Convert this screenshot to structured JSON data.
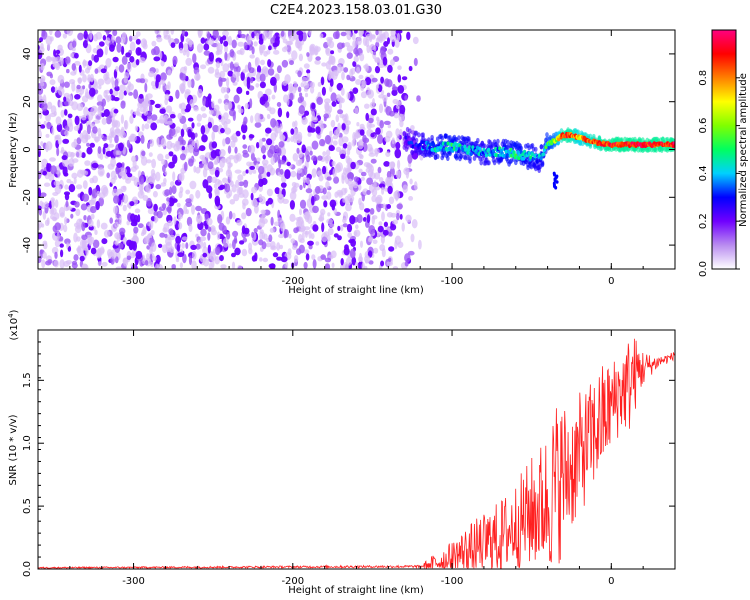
{
  "title": "C2E4.2023.158.03.01.G30",
  "chart_data": [
    {
      "type": "scatter",
      "name": "spectrogram",
      "xlabel": "Height of straight line (km)",
      "ylabel": "Frequency (Hz)",
      "xlim": [
        -360,
        40
      ],
      "ylim": [
        -50,
        50
      ],
      "xticks": [
        -300,
        -200,
        -100,
        0
      ],
      "yticks": [
        -40,
        -20,
        0,
        20,
        40
      ],
      "noise_region": {
        "x": [
          -360,
          -125
        ],
        "y": [
          -50,
          50
        ],
        "amplitude_range": [
          0.0,
          0.15
        ]
      },
      "signal_trace": {
        "x": [
          -130,
          -120,
          -110,
          -100,
          -90,
          -80,
          -70,
          -60,
          -50,
          -45,
          -40,
          -35,
          -30,
          -25,
          -20,
          -10,
          0,
          10,
          20,
          30,
          40
        ],
        "y": [
          4,
          2,
          1,
          1,
          0,
          -1,
          -1,
          -2,
          -3,
          -4,
          2,
          4,
          6,
          6,
          5,
          3,
          2,
          2,
          2,
          2,
          2
        ],
        "amplitude": [
          0.2,
          0.3,
          0.4,
          0.45,
          0.4,
          0.35,
          0.4,
          0.45,
          0.4,
          0.35,
          0.5,
          0.6,
          0.9,
          0.85,
          0.75,
          0.85,
          0.9,
          0.9,
          0.9,
          0.9,
          0.9
        ]
      },
      "colorbar": {
        "label": "Normalized spectral amplitude",
        "range": [
          0.0,
          1.0
        ],
        "ticks": [
          0.0,
          0.2,
          0.4,
          0.6,
          0.8
        ],
        "tick_labels": [
          "0.0",
          "0.2",
          "0.4",
          "0.6",
          "0.8"
        ],
        "colors": [
          "#ffffff",
          "#b98cf0",
          "#7000ff",
          "#0000ff",
          "#00d0ff",
          "#00ff60",
          "#80ff00",
          "#ffff00",
          "#ff8000",
          "#ff0000",
          "#ff0080"
        ]
      }
    },
    {
      "type": "line",
      "name": "snr",
      "xlabel": "Height of straight line (km)",
      "ylabel": "SNR (10 * v/v)",
      "y_multiplier": "(x10",
      "y_multiplier_exp": "4",
      "y_multiplier_close": ")",
      "xlim": [
        -360,
        40
      ],
      "ylim": [
        0.0,
        1.9
      ],
      "xticks": [
        -300,
        -200,
        -100,
        0
      ],
      "yticks": [
        0.0,
        0.5,
        1.0,
        1.5
      ],
      "ytick_labels": [
        "0.0",
        "0.5",
        "1.0",
        "1.5"
      ],
      "color": "#ff2020",
      "envelope": {
        "x": [
          -360,
          -120,
          -110,
          -100,
          -90,
          -80,
          -70,
          -60,
          -50,
          -45,
          -40,
          -35,
          -30,
          -25,
          -20,
          -15,
          -10,
          -5,
          0,
          5,
          10,
          12,
          15,
          20,
          25,
          30,
          35,
          40
        ],
        "base": [
          0.01,
          0.02,
          0.05,
          0.1,
          0.15,
          0.2,
          0.25,
          0.35,
          0.45,
          0.5,
          0.55,
          0.65,
          0.75,
          0.8,
          0.9,
          1.0,
          1.1,
          1.2,
          1.3,
          1.4,
          1.45,
          1.5,
          1.55,
          1.6,
          1.62,
          1.65,
          1.67,
          1.7
        ],
        "spread": [
          0.005,
          0.01,
          0.08,
          0.12,
          0.2,
          0.25,
          0.3,
          0.35,
          0.45,
          0.5,
          0.55,
          0.7,
          0.6,
          0.5,
          0.5,
          0.45,
          0.45,
          0.45,
          0.35,
          0.35,
          0.35,
          0.45,
          0.3,
          0.15,
          0.08,
          0.05,
          0.04,
          0.03
        ]
      }
    }
  ]
}
